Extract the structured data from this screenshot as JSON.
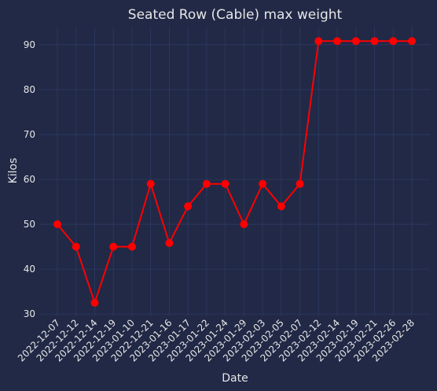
{
  "chart_data": {
    "type": "line",
    "title": "Seated Row (Cable) max weight",
    "xlabel": "Date",
    "ylabel": "Kilos",
    "categories": [
      "2022-12-07",
      "2022-12-12",
      "2022-12-14",
      "2022-12-19",
      "2023-01-10",
      "2022-12-21",
      "2023-01-16",
      "2023-01-17",
      "2023-01-22",
      "2023-01-24",
      "2023-01-29",
      "2023-02-03",
      "2023-02-05",
      "2023-02-07",
      "2023-02-12",
      "2023-02-14",
      "2023-02-19",
      "2023-02-21",
      "2023-02-26",
      "2023-02-28"
    ],
    "series": [
      {
        "values": [
          50,
          45,
          32.5,
          45,
          45,
          59,
          45.8,
          54,
          59,
          59,
          50,
          59,
          54,
          59,
          90.8,
          90.8,
          90.8,
          90.8,
          90.8,
          90.8
        ]
      }
    ],
    "ylim": [
      29.5,
      94
    ],
    "yticks": [
      30,
      40,
      50,
      60,
      70,
      80,
      90
    ],
    "grid": true,
    "legend": "none",
    "line_color": "#ff0000",
    "marker_color": "#ff0000",
    "background": "#212946",
    "grid_color": "#2c3a63"
  }
}
